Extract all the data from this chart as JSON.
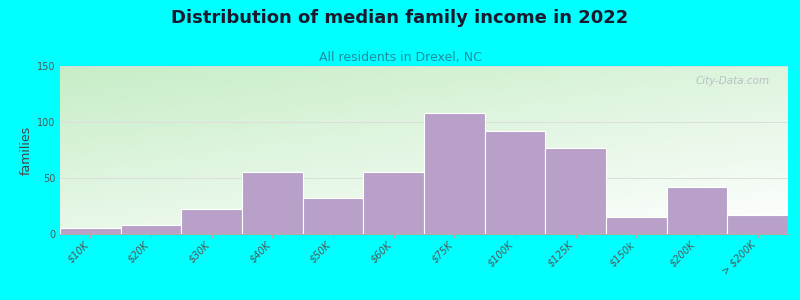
{
  "title": "Distribution of median family income in 2022",
  "subtitle": "All residents in Drexel, NC",
  "ylabel": "families",
  "categories": [
    "$10K",
    "$20K",
    "$30K",
    "$40K",
    "$50K",
    "$60K",
    "$75K",
    "$100K",
    "$125K",
    "$150k",
    "$200K",
    "> $200K"
  ],
  "values": [
    5,
    8,
    22,
    55,
    32,
    55,
    108,
    92,
    77,
    15,
    42,
    17
  ],
  "bar_color": "#b8a0c8",
  "bar_edge_color": "#ffffff",
  "bg_color": "#00ffff",
  "title_color": "#1a1a2e",
  "subtitle_color": "#1a8fa0",
  "ylabel_color": "#444444",
  "tick_color": "#555555",
  "grid_color": "#dddddd",
  "ylim": [
    0,
    150
  ],
  "yticks": [
    0,
    50,
    100,
    150
  ],
  "watermark": "City-Data.com",
  "title_fontsize": 13,
  "subtitle_fontsize": 9,
  "ylabel_fontsize": 9,
  "tick_fontsize": 7
}
